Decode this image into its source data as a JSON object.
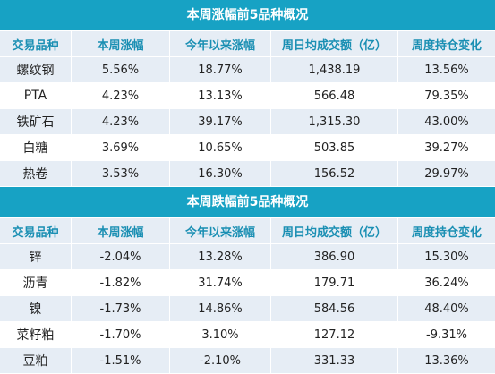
{
  "headers": [
    "交易品种",
    "本周涨幅",
    "今年以来涨幅",
    "周日均成交额（亿）",
    "周度持仓变化"
  ],
  "gainers": {
    "title": "本周涨幅前5品种概况",
    "rows": [
      [
        "螺纹钢",
        "5.56%",
        "18.77%",
        "1,438.19",
        "13.56%"
      ],
      [
        "PTA",
        "4.23%",
        "13.13%",
        "566.48",
        "79.35%"
      ],
      [
        "铁矿石",
        "4.23%",
        "39.17%",
        "1,315.30",
        "43.00%"
      ],
      [
        "白糖",
        "3.69%",
        "10.65%",
        "503.85",
        "39.27%"
      ],
      [
        "热卷",
        "3.53%",
        "16.30%",
        "156.52",
        "29.97%"
      ]
    ]
  },
  "losers": {
    "title": "本周跌幅前5品种概况",
    "rows": [
      [
        "锌",
        "-2.04%",
        "13.28%",
        "386.90",
        "15.30%"
      ],
      [
        "沥青",
        "-1.82%",
        "31.74%",
        "179.71",
        "36.24%"
      ],
      [
        "镍",
        "-1.73%",
        "14.86%",
        "584.56",
        "48.40%"
      ],
      [
        "菜籽粕",
        "-1.70%",
        "3.10%",
        "127.12",
        "-9.31%"
      ],
      [
        "豆粕",
        "-1.51%",
        "-2.10%",
        "331.33",
        "13.36%"
      ]
    ]
  },
  "colors": {
    "title_bg": "#17a2c4",
    "header_text": "#1a8fb3",
    "row_shade": "#e6edf5"
  }
}
